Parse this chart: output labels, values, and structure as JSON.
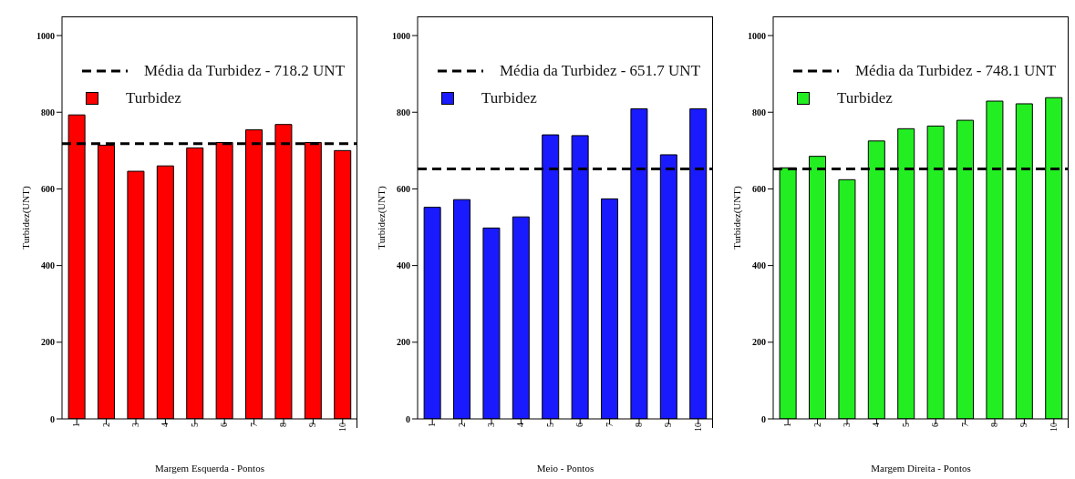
{
  "chart_data": [
    {
      "type": "bar",
      "xlabel": "Margem Esquerda - Pontos",
      "ylabel": "Turbidez(UNT)",
      "categories": [
        "1",
        "2",
        "3",
        "4",
        "5",
        "6",
        "7",
        "8",
        "9",
        "10"
      ],
      "series": [
        {
          "name": "Turbidez",
          "color": "#ff0000",
          "values": [
            793,
            714,
            646,
            660,
            707,
            721,
            754,
            768,
            721,
            700
          ]
        }
      ],
      "ylim": [
        0,
        1050
      ],
      "yticks": [
        0,
        200,
        400,
        600,
        800,
        1000
      ],
      "grid": false,
      "legend": "top",
      "ref_lines": [
        {
          "axis": "y",
          "value": 718,
          "label": "Média da Turbidez - 718.2 UNT",
          "line_style": "dashed"
        }
      ]
    },
    {
      "type": "bar",
      "xlabel": "Meio - Pontos",
      "ylabel": "Turbidez(UNT)",
      "categories": [
        "1",
        "2",
        "3",
        "4",
        "5",
        "6",
        "7",
        "8",
        "9",
        "10"
      ],
      "series": [
        {
          "name": "Turbidez",
          "color": "#1a1aff",
          "values": [
            552,
            572,
            498,
            527,
            741,
            739,
            574,
            809,
            689,
            809
          ]
        }
      ],
      "ylim": [
        0,
        1050
      ],
      "yticks": [
        0,
        200,
        400,
        600,
        800,
        1000
      ],
      "grid": false,
      "legend": "top",
      "ref_lines": [
        {
          "axis": "y",
          "value": 652,
          "label": "Média da Turbidez - 651.7 UNT",
          "line_style": "dashed"
        }
      ]
    },
    {
      "type": "bar",
      "xlabel": "Margem Direita - Pontos",
      "ylabel": "Turbidez(UNT)",
      "categories": [
        "1",
        "2",
        "3",
        "4",
        "5",
        "6",
        "7",
        "8",
        "9",
        "10"
      ],
      "series": [
        {
          "name": "Turbidez",
          "color": "#22ee22",
          "values": [
            655,
            685,
            624,
            725,
            757,
            764,
            779,
            829,
            822,
            838
          ]
        }
      ],
      "ylim": [
        0,
        1050
      ],
      "yticks": [
        0,
        200,
        400,
        600,
        800,
        1000
      ],
      "grid": false,
      "legend": "top",
      "ref_lines": [
        {
          "axis": "y",
          "value": 652,
          "label": "Média da Turbidez - 748.1 UNT",
          "line_style": "dashed"
        }
      ]
    }
  ]
}
